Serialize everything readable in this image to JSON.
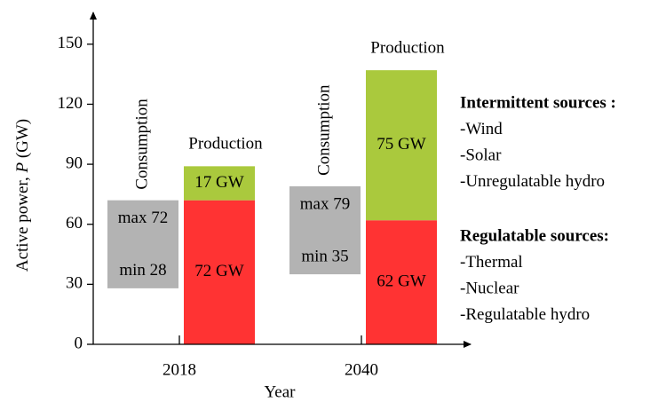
{
  "chart_data": {
    "type": "range_stacked_bar",
    "ylabel": [
      {
        "text": "Active power, ",
        "italic": false
      },
      {
        "text": "P",
        "italic": true
      },
      {
        "text": " (GW)",
        "italic": false
      }
    ],
    "xlabel": "Year",
    "categories": [
      "2018",
      "2040"
    ],
    "ylim": [
      0,
      165
    ],
    "yticks": [
      0,
      30,
      60,
      90,
      120,
      150
    ],
    "consumption": {
      "name": "Consumption",
      "color": "#b3b3b3",
      "min": [
        28,
        35
      ],
      "max": [
        72,
        79
      ],
      "min_labels": [
        "min 28",
        "min 35"
      ],
      "max_labels": [
        "max 72",
        "max 79"
      ]
    },
    "production": {
      "name": "Production",
      "series": [
        {
          "name": "Regulatable sources:",
          "color": "#ff3333",
          "values": [
            72,
            62
          ],
          "value_labels": [
            "72 GW",
            "62 GW"
          ],
          "items": [
            "-Thermal",
            "-Nuclear",
            "-Regulatable hydro"
          ]
        },
        {
          "name": "Intermittent sources :",
          "color": "#aac93d",
          "values": [
            17,
            75
          ],
          "value_labels": [
            "17 GW",
            "75 GW"
          ],
          "items": [
            "-Wind",
            "-Solar",
            "-Unregulatable hydro"
          ]
        }
      ]
    }
  }
}
